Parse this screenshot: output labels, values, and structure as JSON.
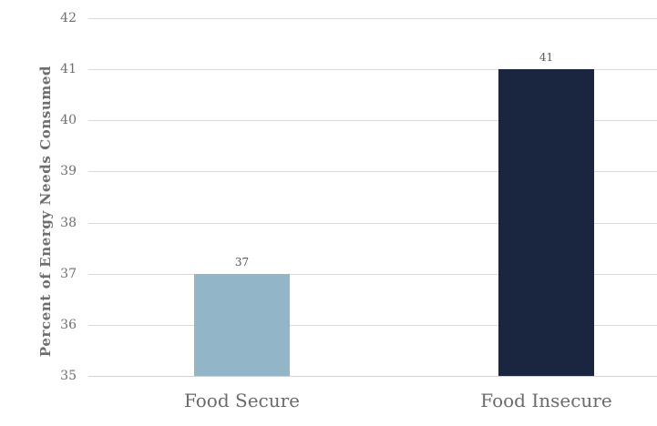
{
  "chart_data": {
    "type": "bar",
    "categories": [
      "Food Secure",
      "Food Insecure"
    ],
    "values": [
      37,
      41
    ],
    "data_labels": [
      "37",
      "41"
    ],
    "bar_colors": [
      "#92b6c7",
      "#1a2640"
    ],
    "title": "",
    "xlabel": "",
    "ylabel": "Percent of Energy Needs Consumed",
    "ylim": [
      35,
      42
    ],
    "yticks": [
      35,
      36,
      37,
      38,
      39,
      40,
      41,
      42
    ],
    "ytick_labels": [
      "35",
      "36",
      "37",
      "38",
      "39",
      "40",
      "41",
      "42"
    ],
    "grid": true,
    "legend": false
  },
  "colors": {
    "gridline": "#dadada",
    "axis_line": "#d2d2d2",
    "tick_text": "#6e6e6e",
    "category_text": "#6b6b6b",
    "value_text": "#595959",
    "background": "#ffffff"
  }
}
